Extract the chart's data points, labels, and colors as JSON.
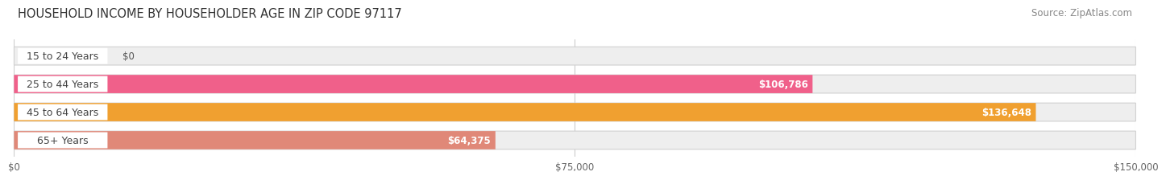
{
  "title": "HOUSEHOLD INCOME BY HOUSEHOLDER AGE IN ZIP CODE 97117",
  "source": "Source: ZipAtlas.com",
  "categories": [
    "15 to 24 Years",
    "25 to 44 Years",
    "45 to 64 Years",
    "65+ Years"
  ],
  "values": [
    0,
    106786,
    136648,
    64375
  ],
  "bar_colors": [
    "#aab0d8",
    "#f0608a",
    "#f0a030",
    "#e08878"
  ],
  "bar_bg_color": "#eeeeee",
  "label_bg_color": "#ffffff",
  "value_labels": [
    "$0",
    "$106,786",
    "$136,648",
    "$64,375"
  ],
  "x_ticks": [
    0,
    75000,
    150000
  ],
  "x_tick_labels": [
    "$0",
    "$75,000",
    "$150,000"
  ],
  "xlim": [
    0,
    150000
  ],
  "title_fontsize": 10.5,
  "source_fontsize": 8.5,
  "bar_label_fontsize": 9,
  "value_label_fontsize": 8.5,
  "cat_text_color": "#444444"
}
